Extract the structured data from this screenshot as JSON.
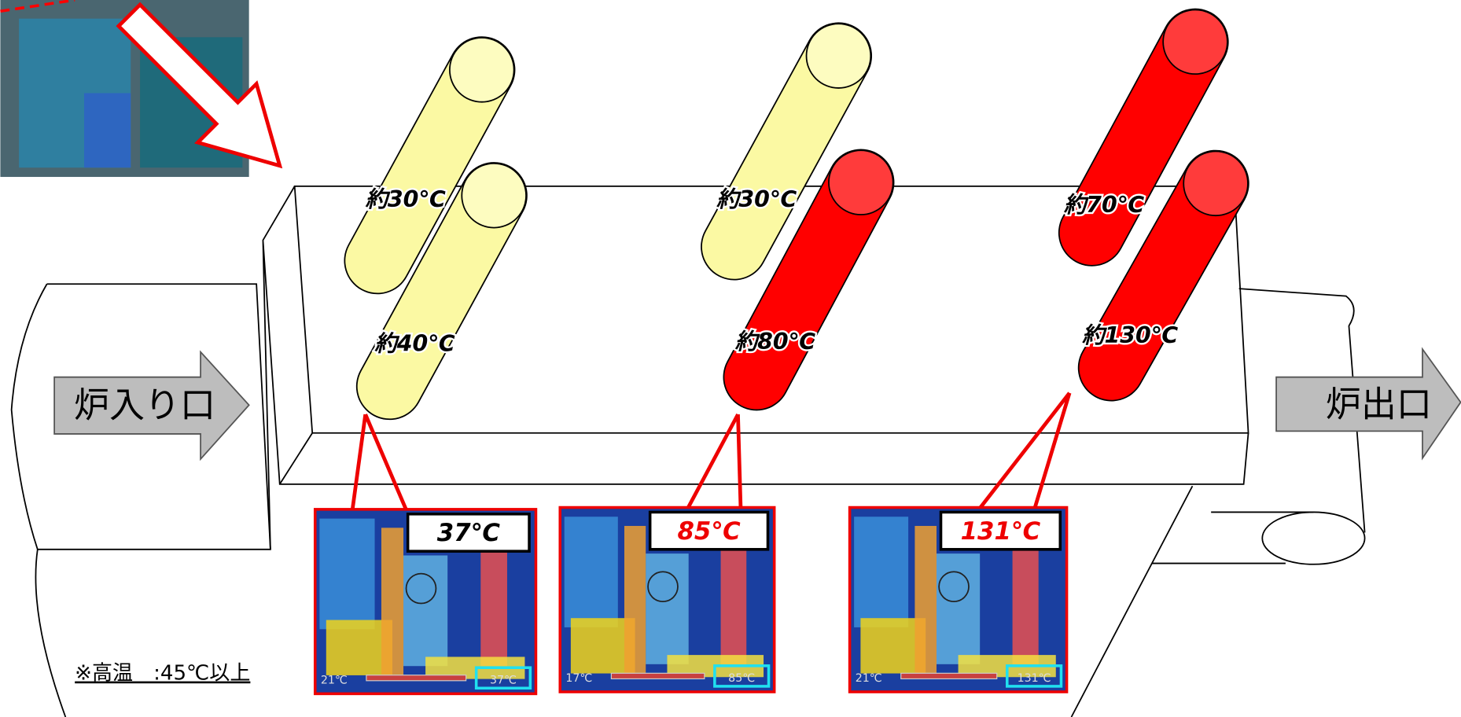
{
  "entrance_label": "炉入り口",
  "exit_label": "炉出口",
  "rollers": [
    {
      "label": "約30℃"
    },
    {
      "label": "約40℃"
    },
    {
      "label": "約30℃"
    },
    {
      "label": "約80℃"
    },
    {
      "label": "約70℃"
    },
    {
      "label": "約130℃"
    }
  ],
  "thermal_images": [
    {
      "reading": "37℃",
      "scale_min": "21℃",
      "scale_max": "37℃"
    },
    {
      "reading": "85℃",
      "scale_min": "17℃",
      "scale_max": "85℃"
    },
    {
      "reading": "131℃",
      "scale_min": "21℃",
      "scale_max": "131℃"
    }
  ],
  "note": "※高温　:45℃以上"
}
